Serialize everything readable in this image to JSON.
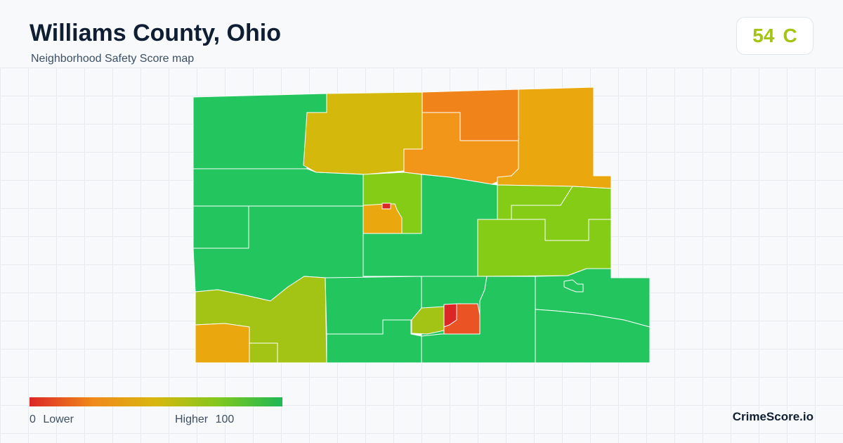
{
  "header": {
    "title": "Williams County, Ohio",
    "subtitle": "Neighborhood Safety Score map"
  },
  "score": {
    "value": "54",
    "grade": "C",
    "color": "#a3c414"
  },
  "legend": {
    "min_value": "0",
    "min_label": "Lower",
    "max_label": "Higher",
    "max_value": "100",
    "colors": [
      "#dc2626",
      "#f08a1a",
      "#d8b70e",
      "#7ec81f",
      "#1fb855"
    ]
  },
  "brand": "CrimeScore.io",
  "map_colors": {
    "green": "#22c55e",
    "yellow_green": "#a3c414",
    "lime": "#84cc16",
    "mustard": "#d4b80c",
    "amber": "#eaa80e",
    "orange": "#f2961a",
    "deep_orange": "#f0841a",
    "red_orange": "#ea5424",
    "red": "#dc2626"
  }
}
